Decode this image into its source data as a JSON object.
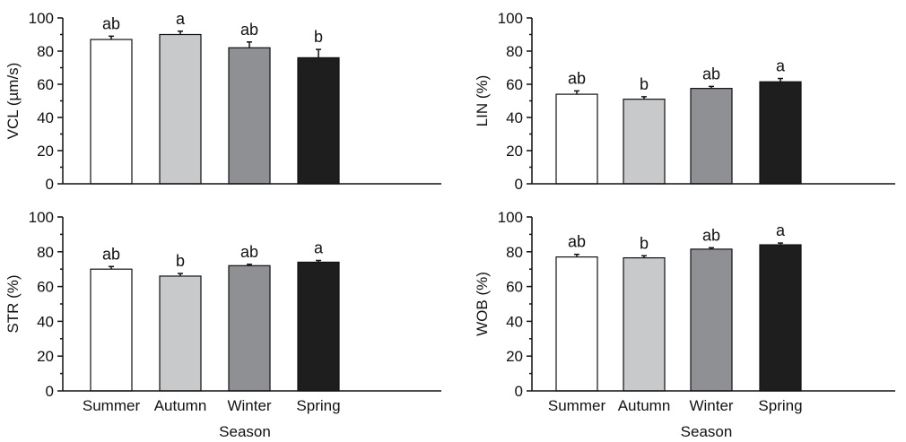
{
  "figure": {
    "xlabel": "Season"
  },
  "chart_data": [
    {
      "type": "bar",
      "categories": [
        "Summer",
        "Autumn",
        "Winter",
        "Spring"
      ],
      "values": [
        87,
        90,
        82,
        76
      ],
      "errors": [
        2,
        2,
        3.5,
        5
      ],
      "significance": [
        "ab",
        "a",
        "ab",
        "b"
      ],
      "ylabel": "VCL (µm/s)",
      "xlabel": "",
      "ylim": [
        0,
        100
      ],
      "yticks": [
        0,
        20,
        40,
        60,
        80,
        100
      ],
      "colors": [
        "#ffffff",
        "#c8c9cb",
        "#8e9094",
        "#1e1e1e"
      ]
    },
    {
      "type": "bar",
      "categories": [
        "Summer",
        "Autumn",
        "Winter",
        "Spring"
      ],
      "values": [
        54,
        51,
        57.5,
        61.5
      ],
      "errors": [
        2,
        1.5,
        1.2,
        2
      ],
      "significance": [
        "ab",
        "b",
        "ab",
        "a"
      ],
      "ylabel": "LIN (%)",
      "xlabel": "",
      "ylim": [
        0,
        100
      ],
      "yticks": [
        0,
        20,
        40,
        60,
        80,
        100
      ],
      "colors": [
        "#ffffff",
        "#c8c9cb",
        "#8e9094",
        "#1e1e1e"
      ]
    },
    {
      "type": "bar",
      "categories": [
        "Summer",
        "Autumn",
        "Winter",
        "Spring"
      ],
      "values": [
        70,
        66,
        72,
        74
      ],
      "errors": [
        1.5,
        1.5,
        0.8,
        1
      ],
      "significance": [
        "ab",
        "b",
        "ab",
        "a"
      ],
      "ylabel": "STR (%)",
      "xlabel": "Season",
      "ylim": [
        0,
        100
      ],
      "yticks": [
        0,
        20,
        40,
        60,
        80,
        100
      ],
      "colors": [
        "#ffffff",
        "#c8c9cb",
        "#8e9094",
        "#1e1e1e"
      ]
    },
    {
      "type": "bar",
      "categories": [
        "Summer",
        "Autumn",
        "Winter",
        "Spring"
      ],
      "values": [
        77,
        76.5,
        81.5,
        84
      ],
      "errors": [
        1.5,
        1.2,
        0.8,
        1
      ],
      "significance": [
        "ab",
        "b",
        "ab",
        "a"
      ],
      "ylabel": "WOB (%)",
      "xlabel": "Season",
      "ylim": [
        0,
        100
      ],
      "yticks": [
        0,
        20,
        40,
        60,
        80,
        100
      ],
      "colors": [
        "#ffffff",
        "#c8c9cb",
        "#8e9094",
        "#1e1e1e"
      ]
    }
  ]
}
